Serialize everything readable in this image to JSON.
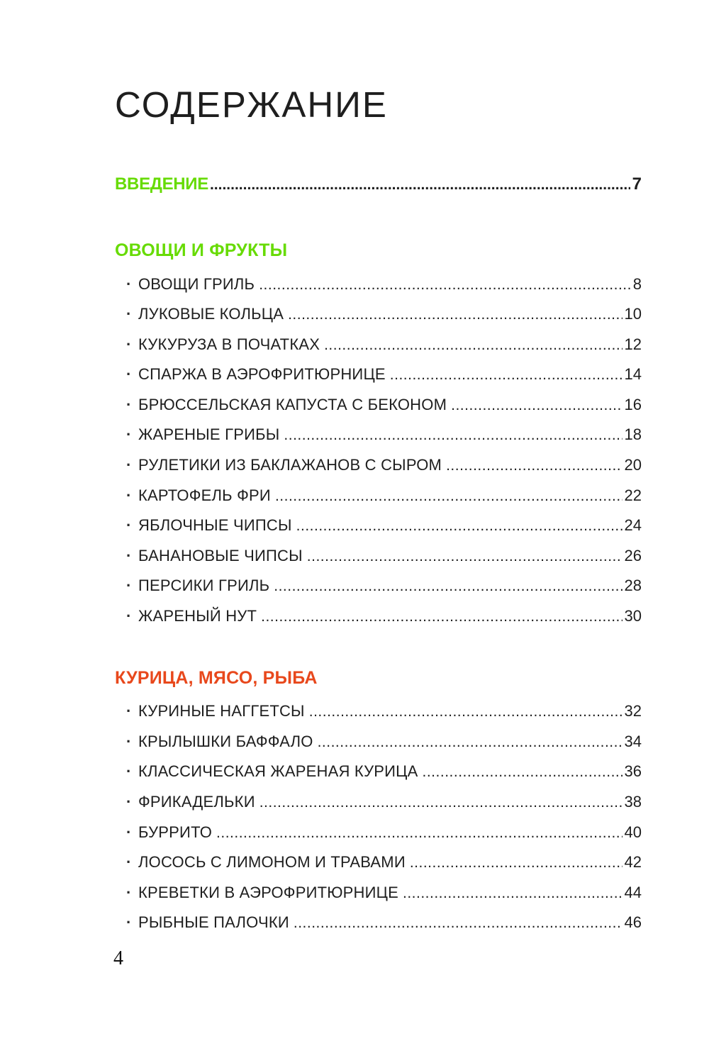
{
  "page": {
    "title": "СОДЕРЖАНИЕ",
    "page_number": "4",
    "colors": {
      "green": "#67DB04",
      "orange": "#E8481C",
      "ink": "#1E1E1E"
    }
  },
  "intro": {
    "label": "ВВЕДЕНИЕ",
    "page": "7"
  },
  "sections": [
    {
      "heading": "ОВОЩИ И ФРУКТЫ",
      "color": "#67DB04",
      "items": [
        {
          "label": "ОВОЩИ ГРИЛЬ",
          "page": "8"
        },
        {
          "label": "ЛУКОВЫЕ КОЛЬЦА",
          "page": "10"
        },
        {
          "label": "КУКУРУЗА В ПОЧАТКАХ",
          "page": "12"
        },
        {
          "label": "СПАРЖА В АЭРОФРИТЮРНИЦЕ",
          "page": "14"
        },
        {
          "label": "БРЮССЕЛЬСКАЯ КАПУСТА  С БЕКОНОМ",
          "page": "16"
        },
        {
          "label": "ЖАРЕНЫЕ ГРИБЫ",
          "page": "18"
        },
        {
          "label": "РУЛЕТИКИ ИЗ БАКЛАЖАНОВ С СЫРОМ",
          "page": "20"
        },
        {
          "label": "КАРТОФЕЛЬ ФРИ",
          "page": "22"
        },
        {
          "label": "ЯБЛОЧНЫЕ ЧИПСЫ",
          "page": "24"
        },
        {
          "label": "БАНАНОВЫЕ ЧИПСЫ",
          "page": "26"
        },
        {
          "label": "ПЕРСИКИ ГРИЛЬ",
          "page": "28"
        },
        {
          "label": "ЖАРЕНЫЙ НУТ",
          "page": "30"
        }
      ]
    },
    {
      "heading": "КУРИЦА, МЯСО, РЫБА",
      "color": "#E8481C",
      "items": [
        {
          "label": "КУРИНЫЕ НАГГЕТСЫ",
          "page": "32"
        },
        {
          "label": "КРЫЛЫШКИ БАФФАЛО",
          "page": "34"
        },
        {
          "label": "КЛАССИЧЕСКАЯ ЖАРЕНАЯ КУРИЦА",
          "page": "36"
        },
        {
          "label": "ФРИКАДЕЛЬКИ",
          "page": "38"
        },
        {
          "label": "БУРРИТО",
          "page": "40"
        },
        {
          "label": "ЛОСОСЬ С ЛИМОНОМ И ТРАВАМИ",
          "page": "42"
        },
        {
          "label": "КРЕВЕТКИ В АЭРОФРИТЮРНИЦЕ",
          "page": "44"
        },
        {
          "label": "РЫБНЫЕ ПАЛОЧКИ",
          "page": "46"
        }
      ]
    }
  ]
}
